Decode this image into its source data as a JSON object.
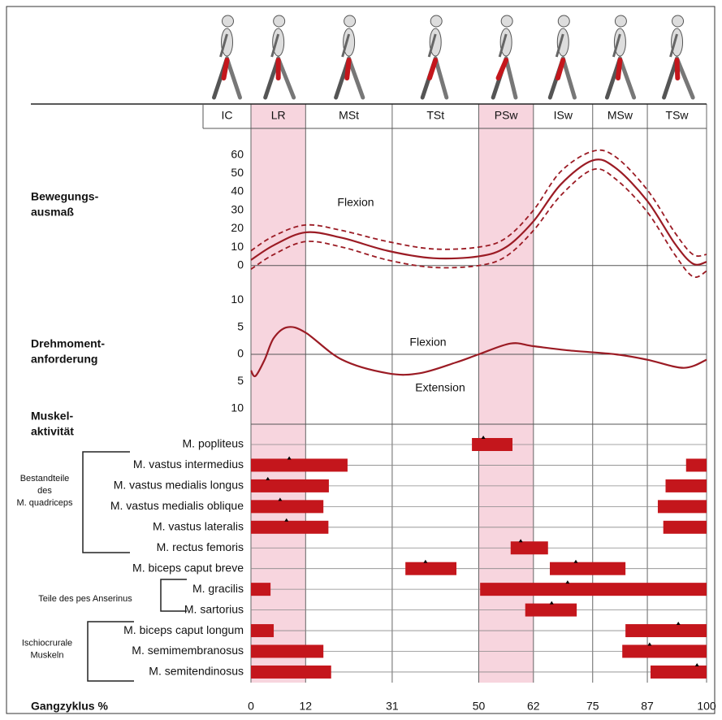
{
  "phases": [
    "IC",
    "LR",
    "MSt",
    "TSt",
    "PSw",
    "ISw",
    "MSw",
    "TSw"
  ],
  "shaded_phases": [
    1,
    4
  ],
  "xlabel": "Gangzyklus %",
  "xlim": [
    0,
    100
  ],
  "xticks": [
    0,
    12,
    31,
    50,
    62,
    75,
    87,
    100
  ],
  "chart_data": [
    {
      "type": "line",
      "label": [
        "Bewegungs-",
        "ausmaß"
      ],
      "annotations": [
        "Flexion"
      ],
      "ylim": [
        -12,
        66
      ],
      "yticks": [
        0,
        10,
        20,
        30,
        40,
        50,
        60
      ],
      "zero_line": true,
      "x": [
        0,
        5,
        12,
        20,
        30,
        40,
        50,
        56,
        62,
        68,
        75,
        80,
        87,
        93,
        97,
        100
      ],
      "series": [
        {
          "color": "#9b1b24",
          "style": "solid",
          "values": [
            3,
            11,
            18,
            15,
            8,
            4,
            5,
            10,
            24,
            44,
            57,
            53,
            35,
            12,
            1,
            2
          ]
        },
        {
          "color": "#9b1b24",
          "style": "dashed",
          "values": [
            8,
            16,
            22,
            19,
            13,
            9,
            10,
            15,
            30,
            51,
            62,
            59,
            41,
            18,
            6,
            6
          ]
        },
        {
          "color": "#9b1b24",
          "style": "dashed",
          "values": [
            -2,
            6,
            13,
            10,
            3,
            -1,
            0,
            5,
            19,
            38,
            52,
            47,
            29,
            6,
            -6,
            -3
          ]
        }
      ]
    },
    {
      "type": "line",
      "label": [
        "Drehmoment-",
        "anforderung"
      ],
      "annotations": [
        "Flexion",
        "Extension"
      ],
      "ylim": [
        -12,
        12
      ],
      "yticks": [
        10,
        5,
        0,
        {
          "value": -5,
          "label": "5"
        },
        {
          "value": -10,
          "label": "10"
        }
      ],
      "zero_line": true,
      "x": [
        0,
        1,
        3,
        5,
        8,
        12,
        20,
        30,
        37,
        45,
        50,
        57,
        62,
        70,
        80,
        87,
        95,
        100
      ],
      "series": [
        {
          "color": "#9b1b24",
          "style": "solid",
          "values": [
            -3,
            -4,
            -1,
            3,
            5,
            4,
            -1,
            -3.5,
            -3.5,
            -1.5,
            0,
            2,
            1.5,
            0.7,
            0,
            -1,
            -2.5,
            -1
          ]
        }
      ]
    },
    {
      "type": "gantt",
      "label": [
        "Muskel-",
        "aktivität"
      ],
      "color": "#c4161c",
      "categories": [
        "M. popliteus",
        "M. vastus intermedius",
        "M. vastus medialis longus",
        "M. vastus medialis oblique",
        "M. vastus lateralis",
        "M. rectus femoris",
        "M. biceps caput breve",
        "M. gracilis",
        "M. sartorius",
        "M. biceps caput longum",
        "M. semimembranosus",
        "M. semitendinosus"
      ],
      "intervals": [
        [
          [
            48.5,
            57.4
          ]
        ],
        [
          [
            0,
            21.2
          ],
          [
            95.5,
            100
          ]
        ],
        [
          [
            0,
            17.1
          ],
          [
            91,
            100
          ]
        ],
        [
          [
            0,
            15.9
          ],
          [
            89.3,
            100
          ]
        ],
        [
          [
            0,
            17
          ],
          [
            90.5,
            100
          ]
        ],
        [
          [
            57,
            65.2
          ]
        ],
        [
          [
            33.9,
            45.1
          ],
          [
            65.6,
            82.2
          ]
        ],
        [
          [
            0,
            4.3
          ],
          [
            50.3,
            100
          ]
        ],
        [
          [
            60.2,
            71.5
          ]
        ],
        [
          [
            0,
            5
          ],
          [
            82.2,
            100
          ]
        ],
        [
          [
            0,
            15.9
          ],
          [
            81.5,
            100
          ]
        ],
        [
          [
            0,
            17.6
          ],
          [
            87.7,
            100
          ]
        ]
      ],
      "peaks": [
        [
          51
        ],
        [
          8.4
        ],
        [
          3.7
        ],
        [
          6.4
        ],
        [
          7.8
        ],
        [
          59.2
        ],
        [
          38.3,
          71.3
        ],
        [
          69.5
        ],
        [
          66
        ],
        [
          93.8
        ],
        [
          87.5
        ],
        [
          97.9
        ]
      ],
      "groups": [
        [
          "Bestandteile",
          "des",
          "M. quadriceps"
        ],
        [
          "Teile des pes Anserinus"
        ],
        [
          "Ischiocrurale",
          "Muskeln"
        ]
      ]
    }
  ]
}
